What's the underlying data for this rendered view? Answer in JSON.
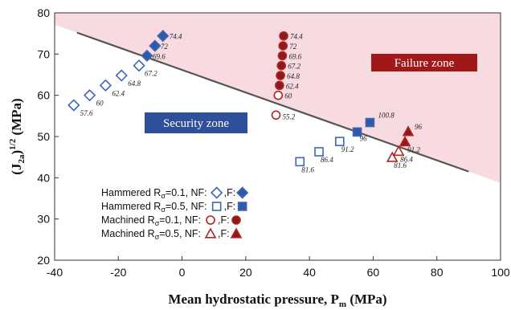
{
  "chart_data": {
    "type": "scatter",
    "xlabel": "Mean hydrostatic pressure, P",
    "xlabel_sub": "m",
    "xlabel_unit": " (MPa)",
    "ylabel": "(J",
    "ylabel_sub": "2a",
    "ylabel_sup": "1/2",
    "ylabel_unit": " (MPa)",
    "xlim": [
      -40,
      100
    ],
    "ylim": [
      20,
      80
    ],
    "xticks": [
      -40,
      -20,
      0,
      20,
      40,
      60,
      80,
      100
    ],
    "xtick_labels": [
      "-40",
      "-20",
      "0",
      "20",
      "40",
      "60",
      "80",
      "100"
    ],
    "yticks": [
      20,
      30,
      40,
      50,
      60,
      70,
      80
    ],
    "ytick_labels": [
      "20",
      "30",
      "40",
      "50",
      "60",
      "70",
      "80"
    ],
    "colors": {
      "blue": "#2f5aa8",
      "blue_light": "#3f66b4",
      "red": "#b52222",
      "dark_red": "#8b1a1a",
      "failure_fill": "#f7dbe1",
      "line": "#555555",
      "box": "#2e4f9a"
    },
    "criterion_line": {
      "x": [
        -33,
        90
      ],
      "y": [
        75.2,
        41.5
      ]
    },
    "zones": {
      "failure": {
        "label": "Failure zone"
      },
      "security": {
        "label": "Security zone"
      }
    },
    "series": [
      {
        "name": "Hammered Rσ=0.1, NF",
        "marker": "diamond-open",
        "points": [
          {
            "x": -34,
            "y": 57.6,
            "label": "57.6"
          },
          {
            "x": -29,
            "y": 60.0,
            "label": "60"
          },
          {
            "x": -24,
            "y": 62.4,
            "label": "62.4"
          },
          {
            "x": -19,
            "y": 64.8,
            "label": "64.8"
          },
          {
            "x": -13.5,
            "y": 67.2,
            "label": "67.2"
          }
        ]
      },
      {
        "name": "Hammered Rσ=0.1, F",
        "marker": "diamond-filled",
        "points": [
          {
            "x": -11,
            "y": 69.6,
            "label": "69.6"
          },
          {
            "x": -8.5,
            "y": 72.0,
            "label": "72"
          },
          {
            "x": -6,
            "y": 74.4,
            "label": "74.4"
          }
        ]
      },
      {
        "name": "Hammered Rσ=0.5, NF",
        "marker": "square-open",
        "points": [
          {
            "x": 37,
            "y": 43.9,
            "label": "81.6"
          },
          {
            "x": 43,
            "y": 46.3,
            "label": "86.4"
          },
          {
            "x": 49.5,
            "y": 48.8,
            "label": "91.2"
          }
        ]
      },
      {
        "name": "Hammered Rσ=0.5, F",
        "marker": "square-filled",
        "points": [
          {
            "x": 55,
            "y": 51.1,
            "label": "96"
          },
          {
            "x": 59,
            "y": 53.4,
            "label": "100.8"
          }
        ]
      },
      {
        "name": "Machined Rσ=0.1, NF",
        "marker": "circle-open",
        "points": [
          {
            "x": 29.5,
            "y": 55.2,
            "label": "55.2"
          },
          {
            "x": 30.2,
            "y": 60.0,
            "label": "60"
          }
        ]
      },
      {
        "name": "Machined Rσ=0.1, F",
        "marker": "circle-filled",
        "points": [
          {
            "x": 30.6,
            "y": 62.4,
            "label": "62.4"
          },
          {
            "x": 30.9,
            "y": 64.8,
            "label": "64.8"
          },
          {
            "x": 31.2,
            "y": 67.2,
            "label": "67.2"
          },
          {
            "x": 31.5,
            "y": 69.6,
            "label": "69.6"
          },
          {
            "x": 31.7,
            "y": 72.0,
            "label": "72"
          },
          {
            "x": 31.9,
            "y": 74.4,
            "label": "74.4"
          }
        ]
      },
      {
        "name": "Machined Rσ=0.5, NF",
        "marker": "triangle-open",
        "points": [
          {
            "x": 66,
            "y": 44.9,
            "label": "81.6"
          },
          {
            "x": 68,
            "y": 46.4,
            "label": "86.4"
          }
        ]
      },
      {
        "name": "Machined Rσ=0.5, F",
        "marker": "triangle-filled",
        "points": [
          {
            "x": 70,
            "y": 48.7,
            "label": "91.2"
          },
          {
            "x": 71,
            "y": 51.2,
            "label": "96"
          }
        ]
      }
    ],
    "legend": [
      {
        "text_main": "Hammered R",
        "text_sub": "σ",
        "text_tail": "=0.1, NF:",
        "nf_marker": "diamond-open",
        "f_marker": "diamond-filled",
        "f_text": ",F:",
        "color": "#2f5aa8"
      },
      {
        "text_main": "Hammered R",
        "text_sub": "σ",
        "text_tail": "=0.5, NF:",
        "nf_marker": "square-open",
        "f_marker": "square-filled",
        "f_text": ",F:",
        "color": "#2f5aa8"
      },
      {
        "text_main": "Machined R",
        "text_sub": "σ",
        "text_tail": "=0.1, NF:",
        "nf_marker": "circle-open",
        "f_marker": "circle-filled",
        "f_text": ",F:",
        "color": "#b52222"
      },
      {
        "text_main": "Machined R",
        "text_sub": "σ",
        "text_tail": "=0.5, NF:",
        "nf_marker": "triangle-open",
        "f_marker": "triangle-filled",
        "f_text": ",F:",
        "color": "#b52222"
      }
    ]
  }
}
